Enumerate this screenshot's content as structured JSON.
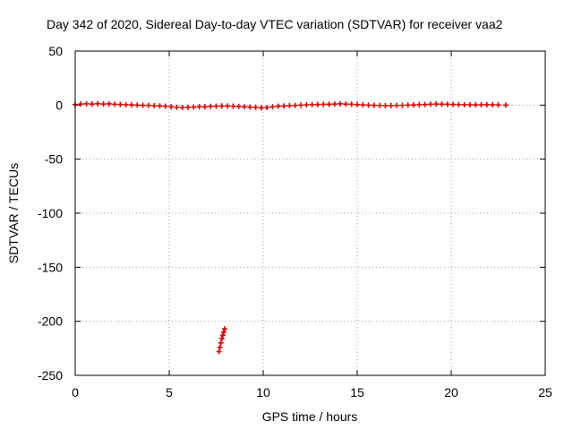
{
  "chart_data": {
    "type": "scatter",
    "title": "Day 342 of 2020, Sidereal Day-to-day VTEC variation (SDTVAR) for receiver vaa2",
    "xlabel": "GPS time / hours",
    "ylabel": "SDTVAR / TECUs",
    "xlim": [
      0,
      25
    ],
    "ylim": [
      -250,
      50
    ],
    "xticks": [
      0,
      5,
      10,
      15,
      20,
      25
    ],
    "yticks": [
      -250,
      -200,
      -150,
      -100,
      -50,
      0,
      50
    ],
    "grid": true,
    "series": [
      {
        "name": "SDTVAR",
        "color": "#e00000",
        "marker": "plus",
        "points": [
          [
            0.0,
            0.5
          ],
          [
            0.3,
            1.0
          ],
          [
            0.6,
            1.2
          ],
          [
            0.9,
            1.0
          ],
          [
            1.2,
            1.3
          ],
          [
            1.5,
            1.0
          ],
          [
            1.8,
            1.2
          ],
          [
            2.1,
            0.8
          ],
          [
            2.4,
            0.6
          ],
          [
            2.7,
            0.4
          ],
          [
            3.0,
            0.2
          ],
          [
            3.3,
            0.0
          ],
          [
            3.6,
            -0.2
          ],
          [
            3.9,
            -0.3
          ],
          [
            4.2,
            -0.5
          ],
          [
            4.5,
            -0.8
          ],
          [
            4.8,
            -1.0
          ],
          [
            5.1,
            -1.5
          ],
          [
            5.4,
            -2.0
          ],
          [
            5.7,
            -2.2
          ],
          [
            6.0,
            -2.0
          ],
          [
            6.3,
            -1.8
          ],
          [
            6.6,
            -1.5
          ],
          [
            6.9,
            -1.5
          ],
          [
            7.2,
            -1.2
          ],
          [
            7.5,
            -1.0
          ],
          [
            7.8,
            -0.8
          ],
          [
            8.1,
            -0.8
          ],
          [
            8.4,
            -1.0
          ],
          [
            8.7,
            -1.2
          ],
          [
            9.0,
            -1.5
          ],
          [
            9.3,
            -1.8
          ],
          [
            9.6,
            -2.0
          ],
          [
            9.9,
            -2.5
          ],
          [
            10.2,
            -2.2
          ],
          [
            10.5,
            -1.5
          ],
          [
            10.8,
            -1.0
          ],
          [
            11.1,
            -0.8
          ],
          [
            11.4,
            -0.5
          ],
          [
            11.7,
            -0.3
          ],
          [
            12.0,
            0.0
          ],
          [
            12.3,
            0.2
          ],
          [
            12.6,
            0.5
          ],
          [
            12.9,
            0.6
          ],
          [
            13.2,
            0.7
          ],
          [
            13.5,
            0.8
          ],
          [
            13.8,
            1.0
          ],
          [
            14.1,
            1.2
          ],
          [
            14.4,
            1.0
          ],
          [
            14.7,
            0.8
          ],
          [
            15.0,
            0.5
          ],
          [
            15.3,
            0.2
          ],
          [
            15.6,
            0.0
          ],
          [
            15.9,
            -0.2
          ],
          [
            16.2,
            -0.3
          ],
          [
            16.5,
            -0.5
          ],
          [
            16.8,
            -0.4
          ],
          [
            17.1,
            -0.3
          ],
          [
            17.4,
            -0.2
          ],
          [
            17.7,
            0.0
          ],
          [
            18.0,
            0.2
          ],
          [
            18.3,
            0.4
          ],
          [
            18.6,
            0.6
          ],
          [
            18.9,
            0.8
          ],
          [
            19.2,
            1.0
          ],
          [
            19.5,
            0.9
          ],
          [
            19.8,
            0.8
          ],
          [
            20.1,
            0.6
          ],
          [
            20.4,
            0.5
          ],
          [
            20.7,
            0.4
          ],
          [
            21.0,
            0.3
          ],
          [
            21.3,
            0.2
          ],
          [
            21.6,
            0.3
          ],
          [
            21.9,
            0.4
          ],
          [
            22.2,
            0.3
          ],
          [
            22.5,
            0.2
          ],
          [
            22.9,
            0.0
          ],
          [
            7.65,
            -228
          ],
          [
            7.7,
            -224
          ],
          [
            7.75,
            -220
          ],
          [
            7.8,
            -216
          ],
          [
            7.85,
            -213
          ],
          [
            7.9,
            -210
          ],
          [
            7.95,
            -207
          ]
        ]
      }
    ]
  }
}
